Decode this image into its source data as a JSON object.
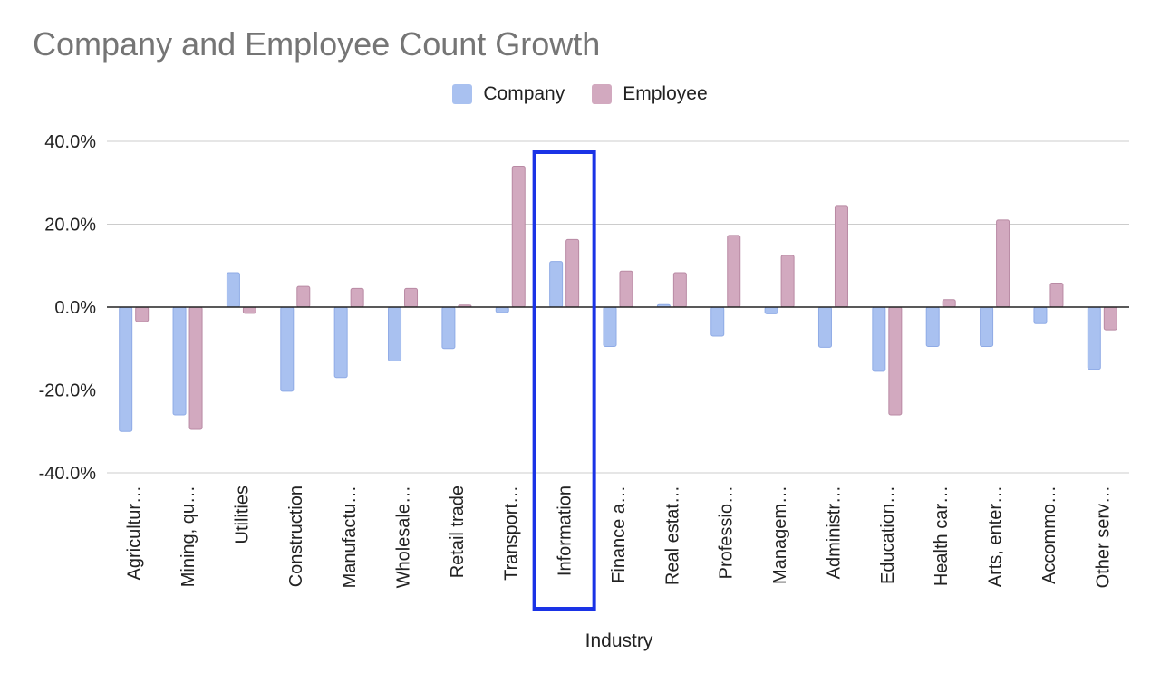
{
  "chart_data": {
    "type": "bar",
    "title": "Company and Employee Count Growth",
    "xlabel": "Industry",
    "ylabel": "",
    "ylim": [
      -40,
      40
    ],
    "yticks": [
      40,
      20,
      0,
      -20,
      -40
    ],
    "ytick_labels": [
      "40.0%",
      "20.0%",
      "0.0%",
      "-20.0%",
      "-40.0%"
    ],
    "grid": true,
    "legend_position": "top-center",
    "highlighted_category": "Information",
    "highlight_color": "#1a33e6",
    "categories": [
      "Agricultur…",
      "Mining, qu…",
      "Utilities",
      "Construction",
      "Manufactu…",
      "Wholesale…",
      "Retail trade",
      "Transport…",
      "Information",
      "Finance a…",
      "Real estat…",
      "Professio…",
      "Managem…",
      "Administr…",
      "Education…",
      "Health car…",
      "Arts, enter…",
      "Accommo…",
      "Other serv…"
    ],
    "series": [
      {
        "name": "Company",
        "color": "#a9c1f0",
        "border": "#8fabe6",
        "values": [
          -30.0,
          -26.0,
          8.3,
          -20.3,
          -17.0,
          -13.0,
          -10.0,
          -1.3,
          11.0,
          -9.5,
          0.6,
          -7.0,
          -1.6,
          -9.7,
          -15.5,
          -9.5,
          -9.5,
          -4.0,
          -15.0
        ]
      },
      {
        "name": "Employee",
        "color": "#d2a9bf",
        "border": "#b98aa4",
        "values": [
          -3.5,
          -29.5,
          -1.5,
          5.0,
          4.5,
          4.5,
          0.5,
          34.0,
          16.3,
          8.7,
          8.3,
          17.3,
          12.5,
          24.5,
          -26.0,
          1.8,
          21.0,
          5.8,
          -5.5
        ]
      }
    ]
  }
}
